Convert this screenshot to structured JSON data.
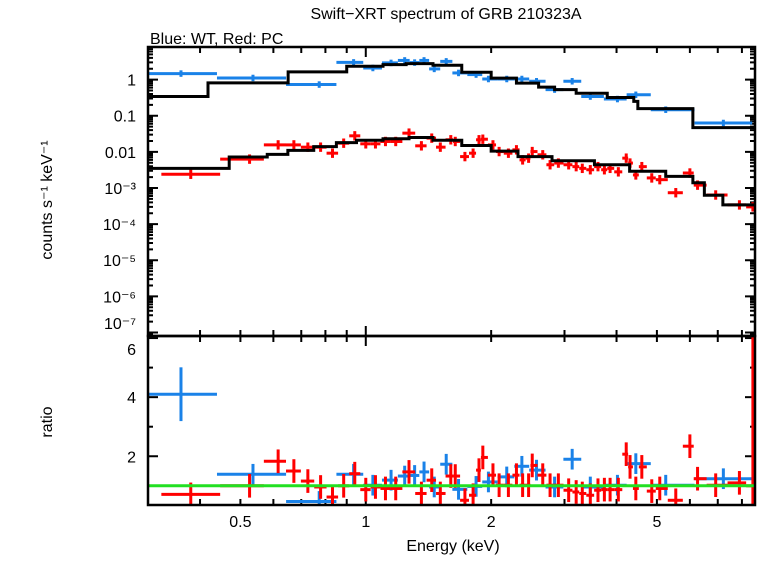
{
  "chart_data": [
    {
      "type": "scatter",
      "title": "Swift−XRT spectrum of GRB 210323A",
      "subtitle": "Blue: WT, Red: PC",
      "xlabel": "",
      "ylabel": "counts s⁻¹ keV⁻¹",
      "xscale": "log",
      "yscale": "log",
      "xlim": [
        0.3,
        8.6
      ],
      "ylim": [
        8e-08,
        8
      ],
      "yticks": [
        1,
        0.1,
        0.01,
        0.001,
        0.0001,
        1e-05,
        1e-06,
        1e-07
      ],
      "ytick_labels": [
        "1",
        "0.1",
        "0.01",
        "10⁻³",
        "10⁻⁴",
        "10⁻⁵",
        "10⁻⁶",
        "10⁻⁷"
      ],
      "colors": {
        "WT": "#1a82e8",
        "PC": "#ff0000",
        "model": "#000000"
      },
      "series": [
        {
          "key": "WT",
          "yerr_dex": 0.09,
          "energy": [
            0.36,
            0.536,
            0.773,
            0.935,
            1.04,
            1.15,
            1.24,
            1.31,
            1.38,
            1.46,
            1.56,
            1.67,
            1.84,
            1.97,
            2.18,
            2.37,
            2.57,
            2.84,
            3.13,
            3.46,
            4.02,
            4.45,
            5.25,
            7.22
          ],
          "values": [
            1.47,
            1.11,
            0.73,
            3.0,
            2.1,
            2.9,
            3.4,
            2.96,
            3.4,
            1.98,
            3.2,
            1.53,
            1.38,
            1.04,
            1.04,
            1.04,
            0.9,
            0.53,
            0.9,
            0.34,
            0.29,
            0.38,
            0.147,
            0.063
          ]
        },
        {
          "key": "PC",
          "yerr_dex": 0.13,
          "energy": [
            0.38,
            0.526,
            0.616,
            0.672,
            0.726,
            0.779,
            0.832,
            0.885,
            0.941,
            1.0,
            1.055,
            1.115,
            1.18,
            1.27,
            1.36,
            1.44,
            1.51,
            1.6,
            1.64,
            1.73,
            1.81,
            1.87,
            1.91,
            2.02,
            2.09,
            2.2,
            2.3,
            2.38,
            2.46,
            2.51,
            2.66,
            2.77,
            2.9,
            3.07,
            3.2,
            3.31,
            3.46,
            3.61,
            3.74,
            3.86,
            4.04,
            4.22,
            4.31,
            4.45,
            4.6,
            4.86,
            5.08,
            5.55,
            6.0,
            6.26,
            6.92,
            7.89,
            8.5
          ],
          "values": [
            0.0024,
            0.0063,
            0.0156,
            0.0156,
            0.0135,
            0.0135,
            0.0092,
            0.0174,
            0.0278,
            0.0167,
            0.0167,
            0.0194,
            0.0194,
            0.033,
            0.0147,
            0.024,
            0.0135,
            0.0216,
            0.0194,
            0.0074,
            0.0092,
            0.0216,
            0.0224,
            0.0156,
            0.0102,
            0.0092,
            0.0114,
            0.006,
            0.0067,
            0.0102,
            0.0083,
            0.0044,
            0.0049,
            0.0044,
            0.0039,
            0.0035,
            0.0032,
            0.0039,
            0.0032,
            0.0035,
            0.0028,
            0.0067,
            0.0049,
            0.0023,
            0.0039,
            0.0019,
            0.0017,
            0.00074,
            0.0026,
            0.0012,
            0.00064,
            0.00034,
            0.0003
          ]
        }
      ],
      "models": [
        {
          "key": "WT",
          "steps": [
            [
              0.3,
              0.34
            ],
            [
              0.418,
              0.81
            ],
            [
              0.651,
              1.64
            ],
            [
              0.9,
              2.35
            ],
            [
              1.1,
              2.6
            ],
            [
              1.25,
              2.78
            ],
            [
              1.45,
              2.5
            ],
            [
              1.7,
              1.6
            ],
            [
              2.0,
              1.1
            ],
            [
              2.3,
              0.8
            ],
            [
              2.6,
              0.62
            ],
            [
              2.84,
              0.53
            ],
            [
              3.2,
              0.42
            ],
            [
              3.8,
              0.32
            ],
            [
              4.4,
              0.25
            ],
            [
              4.5,
              0.157
            ],
            [
              6.1,
              0.047
            ],
            [
              8.6,
              0.047
            ]
          ]
        },
        {
          "key": "PC",
          "steps": [
            [
              0.3,
              0.0035
            ],
            [
              0.47,
              0.0072
            ],
            [
              0.58,
              0.0085
            ],
            [
              0.65,
              0.011
            ],
            [
              0.75,
              0.014
            ],
            [
              0.85,
              0.018
            ],
            [
              0.95,
              0.021
            ],
            [
              1.1,
              0.023
            ],
            [
              1.27,
              0.025
            ],
            [
              1.45,
              0.021
            ],
            [
              1.7,
              0.015
            ],
            [
              2.0,
              0.0105
            ],
            [
              2.32,
              0.0074
            ],
            [
              2.8,
              0.0057
            ],
            [
              3.54,
              0.0044
            ],
            [
              4.3,
              0.0029
            ],
            [
              5.25,
              0.0021
            ],
            [
              6.1,
              0.0014
            ],
            [
              6.5,
              0.00063
            ],
            [
              7.2,
              0.00034
            ],
            [
              8.6,
              0.00034
            ]
          ]
        }
      ]
    },
    {
      "type": "scatter",
      "xlabel": "Energy (keV)",
      "ylabel": "ratio",
      "xscale": "log",
      "yscale": "linear",
      "xlim": [
        0.3,
        8.6
      ],
      "ylim": [
        0.35,
        6.07
      ],
      "xticks": [
        0.5,
        1,
        2,
        5
      ],
      "xtick_labels": [
        "0.5",
        "1",
        "2",
        "5"
      ],
      "yticks": [
        2,
        4,
        6
      ],
      "ytick_labels": [
        "2",
        "4",
        "6"
      ],
      "reference_line": {
        "value": 1,
        "color": "#22e022"
      },
      "series": [
        {
          "key": "WT",
          "yerr": 0.35,
          "energy": [
            0.36,
            0.536,
            0.773,
            0.935,
            1.04,
            1.15,
            1.24,
            1.31,
            1.38,
            1.46,
            1.56,
            1.67,
            1.84,
            1.97,
            2.18,
            2.37,
            2.57,
            2.84,
            3.13,
            3.46,
            4.02,
            4.45,
            5.25,
            7.22
          ],
          "values": [
            4.1,
            1.39,
            0.47,
            1.39,
            1.02,
            1.19,
            1.33,
            1.35,
            1.47,
            0.96,
            1.73,
            0.88,
            0.98,
            1.13,
            1.3,
            1.66,
            1.53,
            0.96,
            1.9,
            0.96,
            1.02,
            1.75,
            1.02,
            1.24
          ]
        },
        {
          "key": "PC",
          "yerr": 0.4,
          "energy": [
            0.38,
            0.526,
            0.616,
            0.672,
            0.726,
            0.779,
            0.832,
            0.885,
            0.941,
            1.0,
            1.055,
            1.115,
            1.18,
            1.27,
            1.36,
            1.44,
            1.51,
            1.6,
            1.64,
            1.73,
            1.81,
            1.87,
            1.91,
            2.02,
            2.09,
            2.2,
            2.3,
            2.38,
            2.46,
            2.51,
            2.66,
            2.77,
            2.9,
            3.07,
            3.2,
            3.31,
            3.46,
            3.61,
            3.74,
            3.86,
            4.04,
            4.22,
            4.31,
            4.45,
            4.6,
            4.86,
            5.08,
            5.55,
            6.0,
            6.26,
            6.92,
            7.89,
            8.5
          ],
          "values": [
            0.71,
            1.0,
            1.83,
            1.5,
            1.16,
            0.96,
            0.62,
            1.0,
            1.41,
            0.87,
            0.96,
            0.91,
            0.91,
            1.47,
            0.74,
            1.19,
            0.74,
            1.33,
            1.33,
            0.51,
            0.68,
            1.53,
            1.96,
            1.36,
            1.02,
            1.02,
            1.36,
            1.02,
            1.02,
            1.69,
            1.36,
            1.02,
            1.02,
            0.85,
            0.79,
            0.74,
            0.68,
            0.85,
            0.87,
            0.87,
            0.87,
            2.07,
            1.64,
            0.91,
            1.64,
            0.82,
            0.91,
            0.51,
            2.34,
            1.24,
            1.02,
            1.1,
            1.0
          ]
        }
      ]
    }
  ]
}
